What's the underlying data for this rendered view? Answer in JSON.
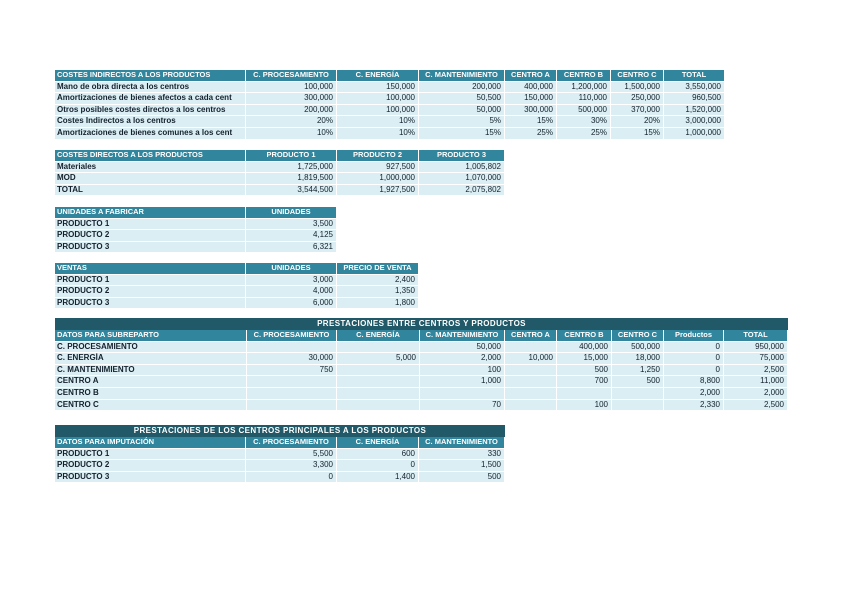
{
  "colors": {
    "header_bg": "#31859C",
    "banner_bg": "#215968",
    "row_bg": "#DAEEF3",
    "header_text": "#FFFFFF",
    "cell_text": "#15212E"
  },
  "tables": {
    "costes_indirectos": {
      "header": [
        "COSTES INDIRECTOS A LOS PRODUCTOS",
        "C. PROCESAMIENTO",
        "C. ENERGÍA",
        "C. MANTENIMIENTO",
        "CENTRO A",
        "CENTRO B",
        "CENTRO C",
        "TOTAL"
      ],
      "rows": [
        {
          "label": "Mano de obra directa a los centros",
          "cells": [
            "100,000",
            "150,000",
            "200,000",
            "400,000",
            "1,200,000",
            "1,500,000",
            "3,550,000"
          ]
        },
        {
          "label": "Amortizaciones de bienes afectos a cada cent",
          "cells": [
            "300,000",
            "100,000",
            "50,500",
            "150,000",
            "110,000",
            "250,000",
            "960,500"
          ]
        },
        {
          "label": "Otros posibles costes directos a los centros",
          "cells": [
            "200,000",
            "100,000",
            "50,000",
            "300,000",
            "500,000",
            "370,000",
            "1,520,000"
          ]
        },
        {
          "label": "Costes Indirectos a los centros",
          "cells": [
            "20%",
            "10%",
            "5%",
            "15%",
            "30%",
            "20%",
            "3,000,000"
          ]
        },
        {
          "label": "Amortizaciones de bienes comunes a los cent",
          "cells": [
            "10%",
            "10%",
            "15%",
            "25%",
            "25%",
            "15%",
            "1,000,000"
          ]
        }
      ]
    },
    "costes_directos": {
      "header": [
        "COSTES DIRECTOS A LOS PRODUCTOS",
        "PRODUCTO 1",
        "PRODUCTO 2",
        "PRODUCTO 3"
      ],
      "rows": [
        {
          "label": "Materiales",
          "cells": [
            "1,725,000",
            "927,500",
            "1,005,802"
          ]
        },
        {
          "label": "MOD",
          "cells": [
            "1,819,500",
            "1,000,000",
            "1,070,000"
          ]
        },
        {
          "label": "TOTAL",
          "cells": [
            "3,544,500",
            "1,927,500",
            "2,075,802"
          ]
        }
      ]
    },
    "unidades_fabricar": {
      "header": [
        "UNIDADES A FABRICAR",
        "UNIDADES"
      ],
      "rows": [
        {
          "label": "PRODUCTO 1",
          "cells": [
            "3,500"
          ]
        },
        {
          "label": "PRODUCTO 2",
          "cells": [
            "4,125"
          ]
        },
        {
          "label": "PRODUCTO 3",
          "cells": [
            "6,321"
          ]
        }
      ]
    },
    "ventas": {
      "header": [
        "VENTAS",
        "UNIDADES",
        "PRECIO DE VENTA"
      ],
      "rows": [
        {
          "label": "PRODUCTO 1",
          "cells": [
            "3,000",
            "2,400"
          ]
        },
        {
          "label": "PRODUCTO 2",
          "cells": [
            "4,000",
            "1,350"
          ]
        },
        {
          "label": "PRODUCTO 3",
          "cells": [
            "6,000",
            "1,800"
          ]
        }
      ]
    },
    "prestaciones_centros": {
      "banner": "PRESTACIONES ENTRE CENTROS Y PRODUCTOS",
      "header": [
        "DATOS PARA SUBREPARTO",
        "C. PROCESAMIENTO",
        "C. ENERGÍA",
        "C. MANTENIMIENTO",
        "CENTRO A",
        "CENTRO B",
        "CENTRO C",
        "Productos",
        "TOTAL"
      ],
      "rows": [
        {
          "label": "C. PROCESAMIENTO",
          "cells": [
            "",
            "",
            "50,000",
            "",
            "400,000",
            "500,000",
            "0",
            "950,000"
          ]
        },
        {
          "label": "C. ENERGÍA",
          "cells": [
            "30,000",
            "5,000",
            "2,000",
            "10,000",
            "15,000",
            "18,000",
            "0",
            "75,000"
          ]
        },
        {
          "label": "C. MANTENIMIENTO",
          "cells": [
            "750",
            "",
            "100",
            "",
            "500",
            "1,250",
            "0",
            "2,500"
          ]
        },
        {
          "label": "CENTRO A",
          "cells": [
            "",
            "",
            "1,000",
            "",
            "700",
            "500",
            "8,800",
            "11,000"
          ]
        },
        {
          "label": "CENTRO B",
          "cells": [
            "",
            "",
            "",
            "",
            "",
            "",
            "2,000",
            "2,000"
          ]
        },
        {
          "label": "CENTRO C",
          "cells": [
            "",
            "",
            "70",
            "",
            "100",
            "",
            "2,330",
            "2,500"
          ]
        }
      ]
    },
    "prestaciones_productos": {
      "banner": "PRESTACIONES DE LOS CENTROS PRINCIPALES A LOS PRODUCTOS",
      "header": [
        "DATOS PARA IMPUTACIÓN",
        "C. PROCESAMIENTO",
        "C. ENERGÍA",
        "C. MANTENIMIENTO"
      ],
      "rows": [
        {
          "label": "PRODUCTO 1",
          "cells": [
            "5,500",
            "600",
            "330"
          ]
        },
        {
          "label": "PRODUCTO 2",
          "cells": [
            "3,300",
            "0",
            "1,500"
          ]
        },
        {
          "label": "PRODUCTO 3",
          "cells": [
            "0",
            "1,400",
            "500"
          ]
        }
      ]
    }
  }
}
